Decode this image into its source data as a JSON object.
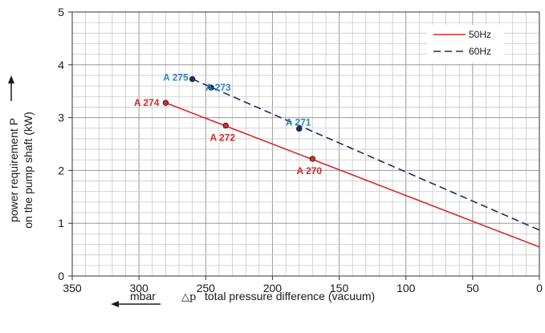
{
  "chart_data": {
    "type": "line",
    "xlabel": "total pressure difference (vacuum)",
    "xlabel_symbol": "△p",
    "xlabel_unit": "mbar",
    "ylabel_line1": "power requirement P",
    "ylabel_line2": "on the pump shaft (kW)",
    "xlim": [
      350,
      0
    ],
    "ylim": [
      0,
      5
    ],
    "x_ticks": [
      350,
      300,
      250,
      200,
      150,
      100,
      50,
      0
    ],
    "y_ticks": [
      0,
      1,
      2,
      3,
      4,
      5
    ],
    "grid": true,
    "legend_position": "top-right",
    "series": [
      {
        "name": "50Hz",
        "color": "#d62828",
        "style": "solid",
        "x": [
          280,
          0
        ],
        "y": [
          3.28,
          0.55
        ]
      },
      {
        "name": "60Hz",
        "color": "#1f2a6b",
        "style": "dashed",
        "x": [
          260,
          0
        ],
        "y": [
          3.73,
          0.87
        ]
      }
    ],
    "points": [
      {
        "label": "A 274",
        "x": 280,
        "y": 3.28,
        "series": "50Hz",
        "label_color": "#d62828"
      },
      {
        "label": "A 272",
        "x": 235,
        "y": 2.85,
        "series": "50Hz",
        "label_color": "#d62828"
      },
      {
        "label": "A 270",
        "x": 170,
        "y": 2.22,
        "series": "50Hz",
        "label_color": "#d62828"
      },
      {
        "label": "A 275",
        "x": 260,
        "y": 3.73,
        "series": "60Hz",
        "label_color": "#2e86c1"
      },
      {
        "label": "A 273",
        "x": 246,
        "y": 3.57,
        "series": "60Hz",
        "label_color": "#2e86c1"
      },
      {
        "label": "A 271",
        "x": 180,
        "y": 2.79,
        "series": "60Hz",
        "label_color": "#2e86c1"
      }
    ]
  }
}
